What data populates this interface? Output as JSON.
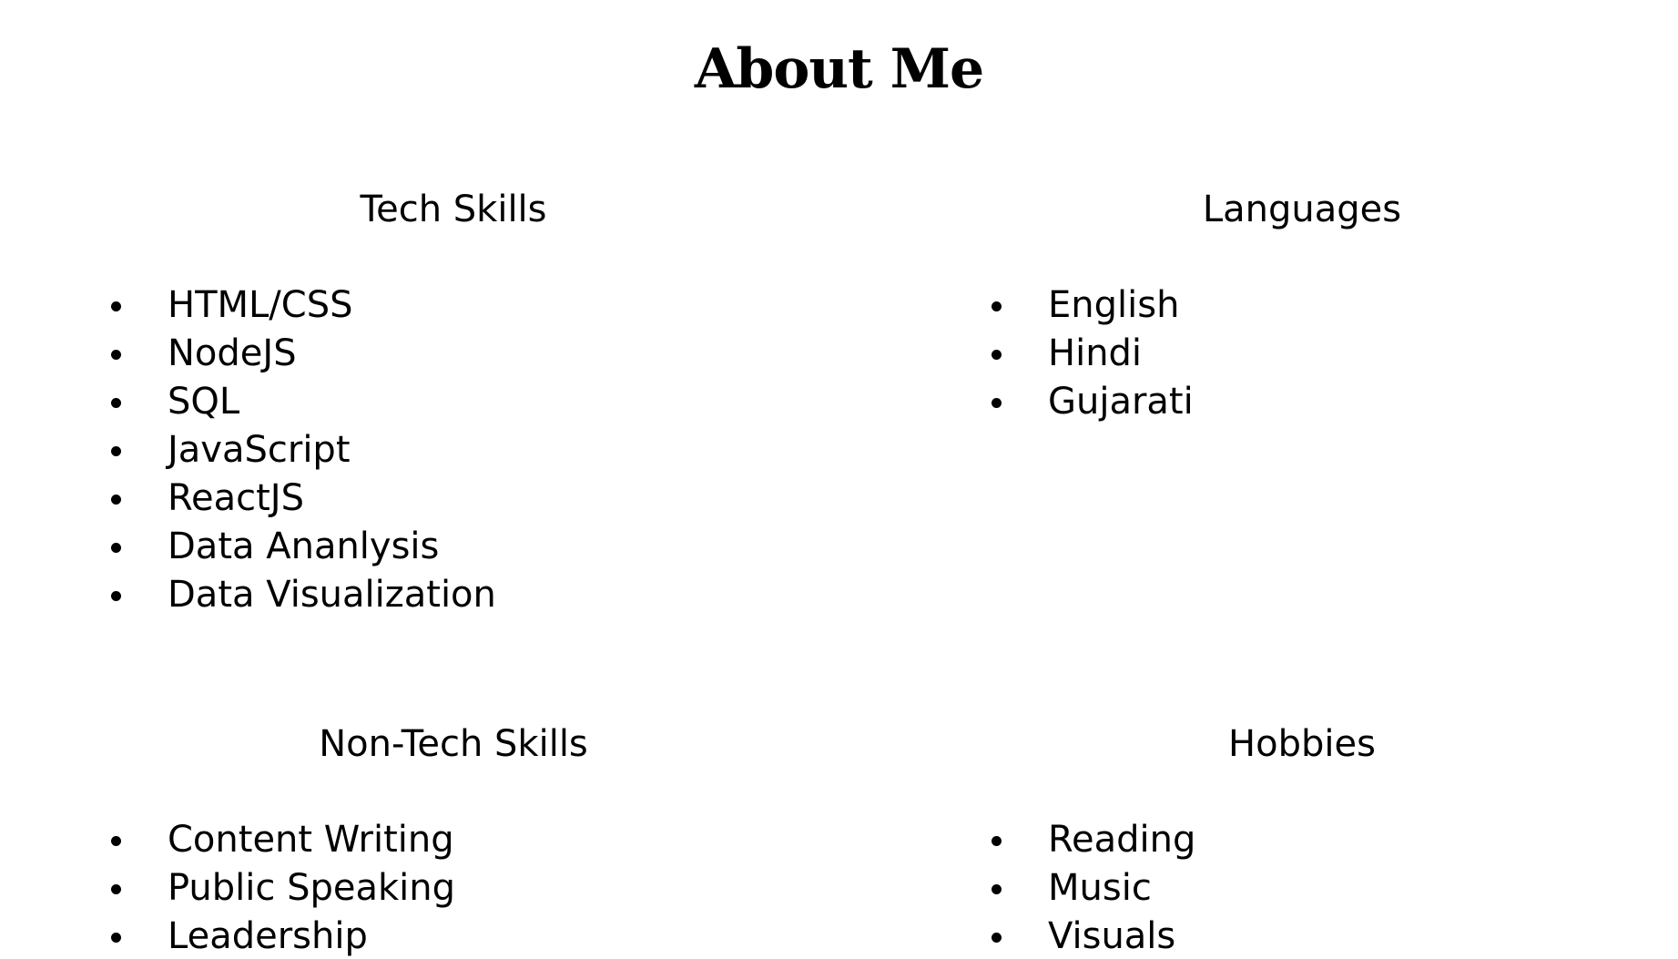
{
  "page": {
    "title": "About Me"
  },
  "sections": [
    {
      "heading": "Tech Skills",
      "items": [
        "HTML/CSS",
        "NodeJS",
        "SQL",
        "JavaScript",
        "ReactJS",
        "Data Ananlysis",
        "Data Visualization"
      ]
    },
    {
      "heading": "Languages",
      "items": [
        "English",
        "Hindi",
        "Gujarati"
      ]
    },
    {
      "heading": "Non-Tech Skills",
      "items": [
        "Content Writing",
        "Public Speaking",
        "Leadership"
      ]
    },
    {
      "heading": "Hobbies",
      "items": [
        "Reading",
        "Music",
        "Visuals"
      ]
    }
  ]
}
